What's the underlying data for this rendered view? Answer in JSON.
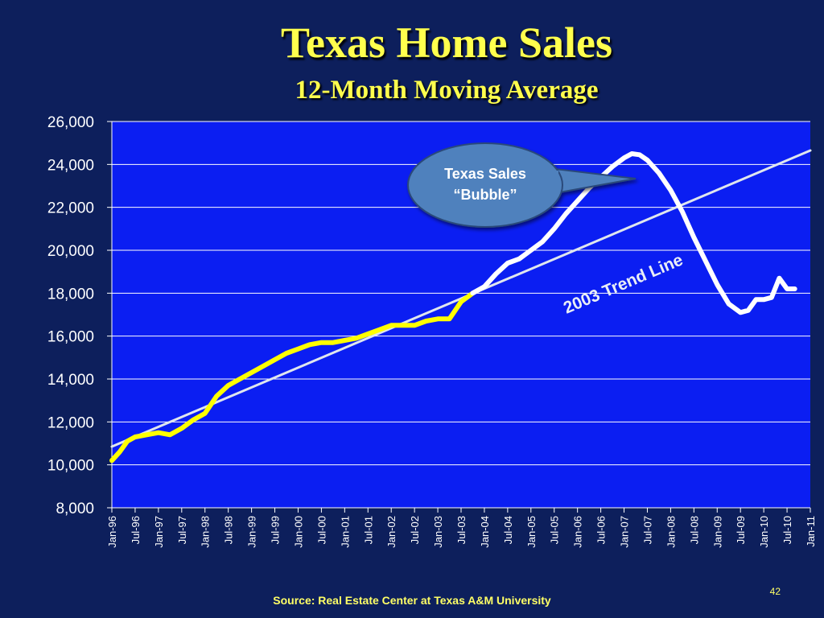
{
  "slide": {
    "title": "Texas Home Sales",
    "subtitle": "12-Month Moving Average",
    "source": "Source:  Real Estate Center at Texas A&M University",
    "page_number": "42"
  },
  "chart_data": {
    "type": "line",
    "title": "Texas Home Sales",
    "subtitle": "12-Month Moving Average",
    "xlabel": "",
    "ylabel": "",
    "ylim": [
      8000,
      26000
    ],
    "y_ticks": [
      "8,000",
      "10,000",
      "12,000",
      "14,000",
      "16,000",
      "18,000",
      "20,000",
      "22,000",
      "24,000",
      "26,000"
    ],
    "x_ticks": [
      "Jan-96",
      "Jul-96",
      "Jan-97",
      "Jul-97",
      "Jan-98",
      "Jul-98",
      "Jan-99",
      "Jul-99",
      "Jan-00",
      "Jul-00",
      "Jan-01",
      "Jul-01",
      "Jan-02",
      "Jul-02",
      "Jan-03",
      "Jul-03",
      "Jan-04",
      "Jul-04",
      "Jan-05",
      "Jul-05",
      "Jan-06",
      "Jul-06",
      "Jan-07",
      "Jul-07",
      "Jan-08",
      "Jul-08",
      "Jan-09",
      "Jul-09",
      "Jan-10",
      "Jul-10",
      "Jan-11"
    ],
    "grid": "horizontal",
    "series": [
      {
        "color": "#ffff00",
        "x": [
          "Jan-96",
          "Mar-96",
          "May-96",
          "Jul-96",
          "Oct-96",
          "Jan-97",
          "Apr-97",
          "Jul-97",
          "Oct-97",
          "Jan-98",
          "Apr-98",
          "Jul-98",
          "Oct-98",
          "Jan-99",
          "Apr-99",
          "Jul-99",
          "Oct-99",
          "Jan-00",
          "Apr-00",
          "Jul-00",
          "Oct-00",
          "Jan-01",
          "Apr-01",
          "Jul-01",
          "Oct-01",
          "Jan-02",
          "Apr-02",
          "Jul-02",
          "Oct-02",
          "Jan-03",
          "Apr-03",
          "Jul-03",
          "Oct-03"
        ],
        "values": [
          10200,
          10600,
          11100,
          11300,
          11400,
          11500,
          11400,
          11700,
          12100,
          12400,
          13200,
          13700,
          14000,
          14300,
          14600,
          14900,
          15200,
          15400,
          15600,
          15700,
          15700,
          15800,
          15900,
          16100,
          16300,
          16500,
          16500,
          16500,
          16700,
          16800,
          16800,
          17600,
          18000
        ]
      },
      {
        "color": "#ffffff",
        "x": [
          "Oct-03",
          "Jan-04",
          "Apr-04",
          "Jul-04",
          "Oct-04",
          "Jan-05",
          "Apr-05",
          "Jul-05",
          "Oct-05",
          "Jan-06",
          "Apr-06",
          "Jul-06",
          "Oct-06",
          "Jan-07",
          "Mar-07",
          "May-07",
          "Jul-07",
          "Oct-07",
          "Jan-08",
          "Apr-08",
          "Jul-08",
          "Oct-08",
          "Jan-09",
          "Apr-09",
          "Jul-09",
          "Sep-09",
          "Nov-09",
          "Jan-10",
          "Mar-10",
          "May-10",
          "Jul-10",
          "Sep-10"
        ],
        "values": [
          18000,
          18300,
          18900,
          19400,
          19600,
          20000,
          20400,
          21000,
          21700,
          22300,
          22900,
          23400,
          23900,
          24300,
          24500,
          24450,
          24200,
          23600,
          22800,
          21800,
          20600,
          19500,
          18400,
          17500,
          17100,
          17200,
          17700,
          17700,
          17800,
          18700,
          18200,
          18200
        ]
      },
      {
        "color": "#dfe6ee",
        "x": [
          "Jan-96",
          "Jan-11"
        ],
        "values": [
          10850,
          24650
        ]
      }
    ],
    "annotations": [
      {
        "text": "2003 Trend Line",
        "color": "#e9eef6"
      },
      {
        "text_lines": [
          "Texas Sales",
          "“Bubble”"
        ],
        "fill": "#4f81bd",
        "text_color": "#ffffff"
      }
    ]
  }
}
